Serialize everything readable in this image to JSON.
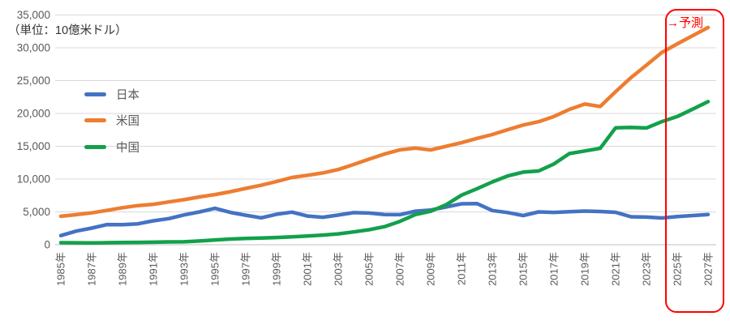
{
  "chart_data": {
    "type": "line",
    "title": "",
    "unit_label": "（単位：10億米ドル）",
    "annotation": "→予測",
    "legend_position": "inside-top-left",
    "grid": "horizontal",
    "ylim": [
      0,
      35000
    ],
    "y_tick_step": 5000,
    "y_tick_labels": [
      "0",
      "5,000",
      "10,000",
      "15,000",
      "20,000",
      "25,000",
      "30,000",
      "35,000"
    ],
    "x": [
      1985,
      1986,
      1987,
      1988,
      1989,
      1990,
      1991,
      1992,
      1993,
      1994,
      1995,
      1996,
      1997,
      1998,
      1999,
      2000,
      2001,
      2002,
      2003,
      2004,
      2005,
      2006,
      2007,
      2008,
      2009,
      2010,
      2011,
      2012,
      2013,
      2014,
      2015,
      2016,
      2017,
      2018,
      2019,
      2020,
      2021,
      2022,
      2023,
      2024,
      2025,
      2026,
      2027
    ],
    "x_tick_labels": [
      "1985年",
      "1987年",
      "1989年",
      "1991年",
      "1993年",
      "1995年",
      "1997年",
      "1999年",
      "2001年",
      "2003年",
      "2005年",
      "2007年",
      "2009年",
      "2011年",
      "2013年",
      "2015年",
      "2017年",
      "2019年",
      "2021年",
      "2023年",
      "2025年",
      "2027年"
    ],
    "series": [
      {
        "name": "日本",
        "color": "#4472C4",
        "values": [
          1399,
          2079,
          2533,
          3071,
          3054,
          3186,
          3648,
          3980,
          4539,
          4998,
          5546,
          4923,
          4492,
          4098,
          4636,
          4968,
          4374,
          4182,
          4519,
          4893,
          4831,
          4601,
          4579,
          5106,
          5289,
          5759,
          6233,
          6272,
          5212,
          4897,
          4444,
          5004,
          4931,
          5041,
          5118,
          5056,
          4941,
          4256,
          4213,
          4070,
          4280,
          4440,
          4600
        ]
      },
      {
        "name": "米国",
        "color": "#ED7D31",
        "values": [
          4339,
          4580,
          4855,
          5236,
          5642,
          5963,
          6158,
          6520,
          6859,
          7287,
          7640,
          8073,
          8578,
          9063,
          9631,
          10251,
          10582,
          10936,
          11456,
          12217,
          13039,
          13816,
          14452,
          14713,
          14449,
          14992,
          15543,
          16197,
          16785,
          17527,
          18238,
          18745,
          19543,
          20612,
          21433,
          21060,
          23315,
          25463,
          27361,
          29300,
          30600,
          31850,
          33100
        ]
      },
      {
        "name": "中国",
        "color": "#12A14B",
        "values": [
          309,
          298,
          272,
          312,
          348,
          361,
          383,
          427,
          445,
          564,
          734,
          864,
          962,
          1029,
          1094,
          1211,
          1339,
          1471,
          1660,
          1955,
          2286,
          2752,
          3550,
          4594,
          5101,
          6087,
          7552,
          8532,
          9570,
          10476,
          11062,
          11233,
          12310,
          13895,
          14280,
          14688,
          17820,
          17882,
          17795,
          18748,
          19530,
          20650,
          21800
        ]
      }
    ],
    "forecast": {
      "label": "→予測",
      "box_color": "#FF0000",
      "covered_tick_labels": [
        "2025年",
        "2027年"
      ]
    },
    "colors": {
      "axis_text": "#595959",
      "gridline": "#D9D9D9",
      "axis_line": "#BFBFBF",
      "forecast_red": "#FF0000",
      "background": "#FFFFFF"
    }
  }
}
